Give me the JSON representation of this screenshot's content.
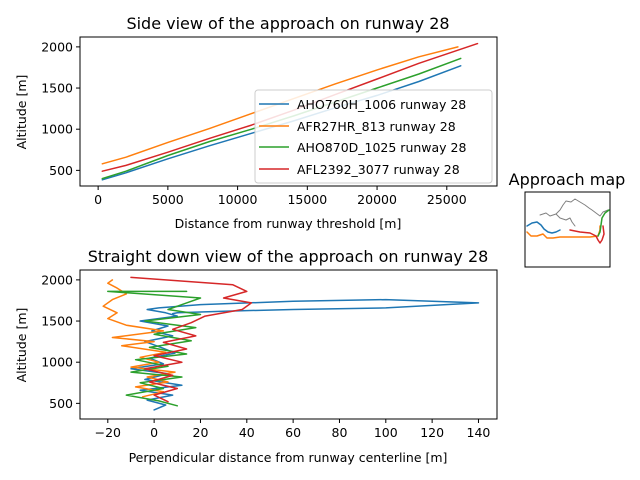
{
  "colors": {
    "c0": "#1f77b4",
    "c1": "#ff7f0e",
    "c2": "#2ca02c",
    "c3": "#d62728",
    "outline": "#808080"
  },
  "chart_data": [
    {
      "type": "line",
      "title": "Side view of the approach on runway 28",
      "xlabel": "Distance from runway threshold [m]",
      "ylabel": "Altitude [m]",
      "xlim": [
        -1300,
        28600
      ],
      "ylim": [
        310,
        2120
      ],
      "xticks": [
        0,
        5000,
        10000,
        15000,
        20000,
        25000
      ],
      "yticks": [
        500,
        1000,
        1500,
        2000
      ],
      "grid": false,
      "legend": "center-right",
      "series": [
        {
          "name": "AHO760H_1006 runway 28",
          "color": "c0",
          "x": [
            300,
            2000,
            5000,
            8000,
            11000,
            14000,
            17000,
            20000,
            23000,
            26000
          ],
          "y": [
            385,
            470,
            640,
            800,
            950,
            1100,
            1260,
            1410,
            1580,
            1770
          ]
        },
        {
          "name": "AFR27HR_813 runway 28",
          "color": "c1",
          "x": [
            300,
            2000,
            5000,
            8000,
            11000,
            14000,
            17000,
            20000,
            23000,
            25800
          ],
          "y": [
            580,
            660,
            840,
            1010,
            1190,
            1370,
            1550,
            1720,
            1880,
            2000
          ]
        },
        {
          "name": "AHO870D_1025 runway 28",
          "color": "c2",
          "x": [
            300,
            2000,
            5000,
            8000,
            11000,
            14000,
            17000,
            20000,
            23000,
            26000
          ],
          "y": [
            400,
            490,
            680,
            850,
            1000,
            1160,
            1330,
            1500,
            1670,
            1860
          ]
        },
        {
          "name": "AFL2392_3077 runway 28",
          "color": "c3",
          "x": [
            300,
            2000,
            5000,
            8000,
            11000,
            14000,
            17000,
            20000,
            23000,
            27200
          ],
          "y": [
            490,
            560,
            720,
            890,
            1050,
            1230,
            1420,
            1610,
            1800,
            2040
          ]
        }
      ]
    },
    {
      "type": "line",
      "title": "Straight down view of the approach on runway 28",
      "xlabel": "Perpendicular distance from runway centerline [m]",
      "ylabel": "Altitude [m]",
      "xlim": [
        -32,
        148
      ],
      "ylim": [
        310,
        2120
      ],
      "xticks": [
        -20,
        0,
        20,
        40,
        60,
        80,
        100,
        120,
        140
      ],
      "yticks": [
        500,
        1000,
        1500,
        2000
      ],
      "grid": false,
      "series": [
        {
          "color": "c0",
          "x": [
            0,
            5,
            -3,
            8,
            -6,
            12,
            -4,
            6,
            -10,
            4,
            -2,
            9,
            3,
            -4,
            8,
            -1,
            6,
            -6,
            10,
            5,
            -3,
            2,
            20,
            60,
            100,
            140,
            100,
            60,
            30,
            10,
            8
          ],
          "y": [
            420,
            480,
            540,
            600,
            660,
            720,
            790,
            860,
            920,
            980,
            1050,
            1110,
            1180,
            1250,
            1320,
            1380,
            1440,
            1500,
            1560,
            1600,
            1640,
            1660,
            1700,
            1740,
            1760,
            1720,
            1660,
            1640,
            1620,
            1600,
            1590
          ]
        },
        {
          "color": "c1",
          "x": [
            -5,
            4,
            -8,
            6,
            -3,
            9,
            -10,
            2,
            -6,
            5,
            -14,
            0,
            -18,
            4,
            -12,
            -20,
            -16,
            -22,
            -18,
            -12,
            -16,
            -20,
            -18
          ],
          "y": [
            580,
            640,
            700,
            760,
            820,
            880,
            940,
            1000,
            1060,
            1120,
            1200,
            1250,
            1300,
            1380,
            1450,
            1530,
            1600,
            1680,
            1760,
            1830,
            1900,
            1960,
            2000
          ]
        },
        {
          "color": "c2",
          "x": [
            10,
            2,
            -12,
            4,
            -6,
            12,
            -10,
            6,
            -8,
            14,
            -2,
            16,
            0,
            18,
            -4,
            20,
            6,
            14,
            20,
            -20,
            14
          ],
          "y": [
            470,
            530,
            600,
            680,
            750,
            820,
            880,
            950,
            1030,
            1100,
            1180,
            1260,
            1340,
            1420,
            1500,
            1580,
            1640,
            1720,
            1780,
            1860,
            1860
          ]
        },
        {
          "color": "c3",
          "x": [
            6,
            0,
            10,
            -2,
            8,
            -4,
            12,
            0,
            14,
            4,
            18,
            8,
            16,
            22,
            38,
            42,
            30,
            40,
            34,
            -10
          ],
          "y": [
            520,
            600,
            680,
            760,
            840,
            920,
            1000,
            1080,
            1160,
            1240,
            1320,
            1400,
            1480,
            1560,
            1640,
            1720,
            1780,
            1860,
            1940,
            2030
          ]
        }
      ]
    }
  ],
  "inset": {
    "title": "Approach map"
  }
}
